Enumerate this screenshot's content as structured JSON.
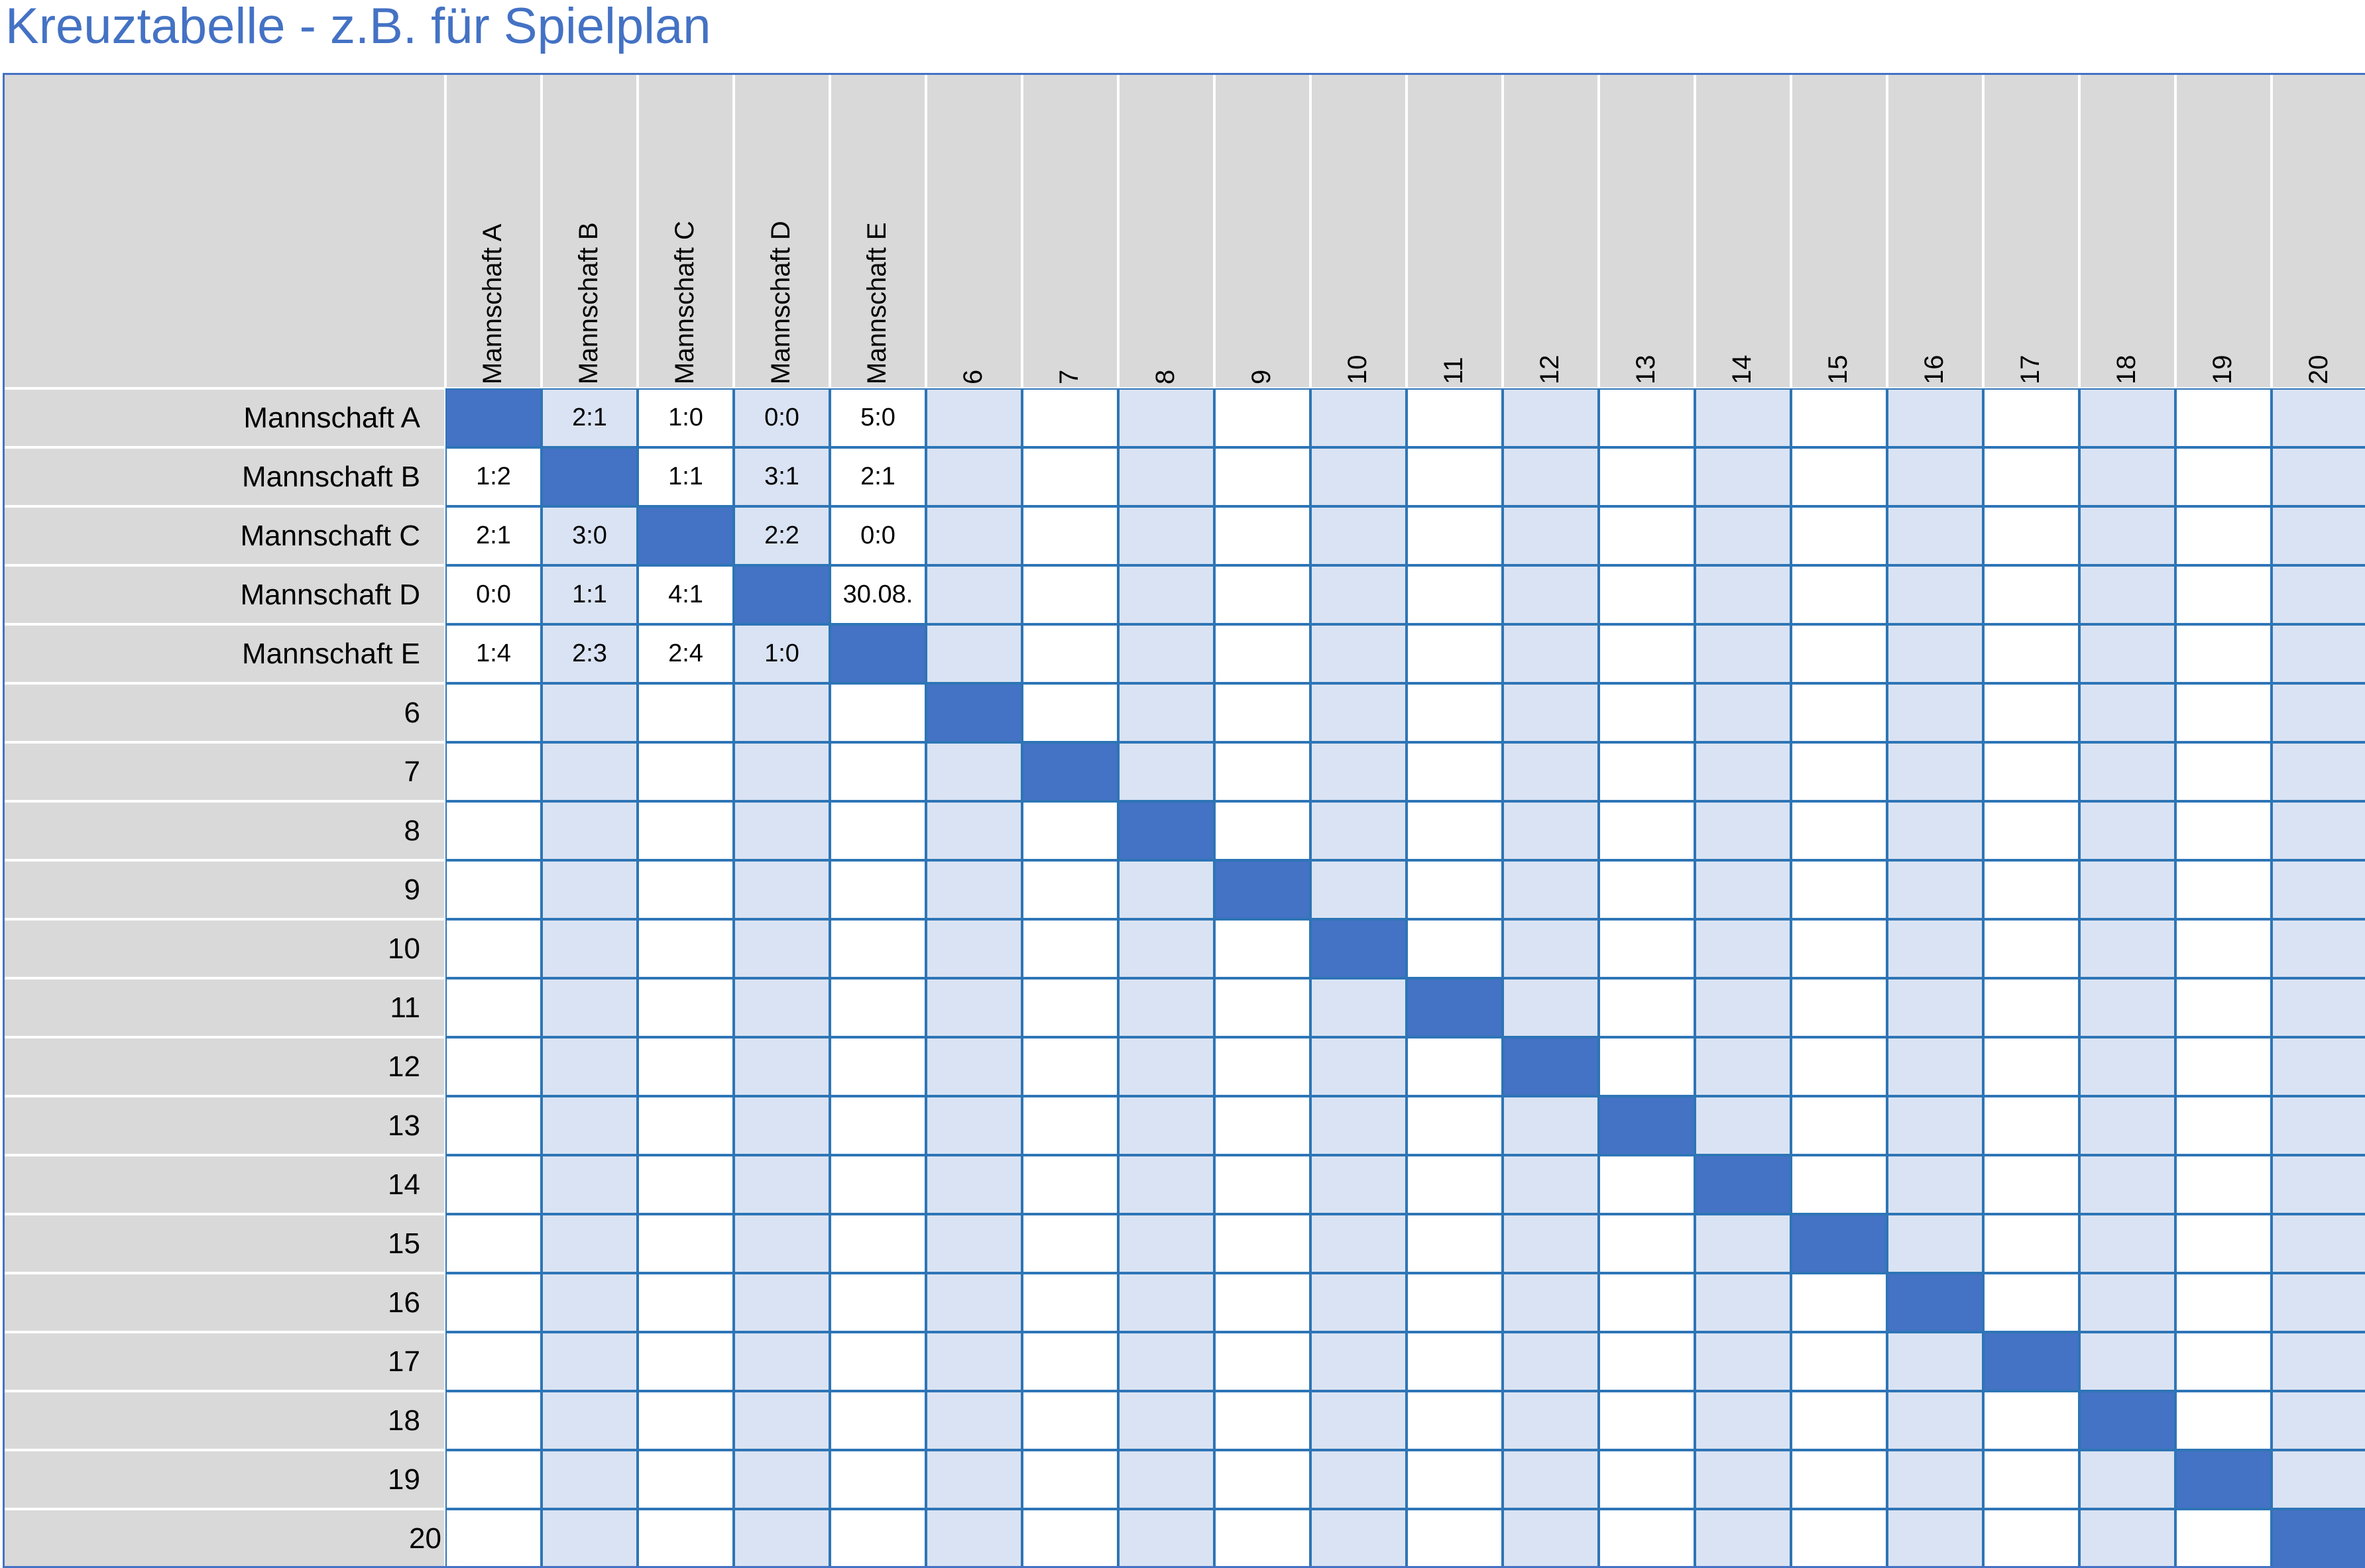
{
  "title": "Kreuztabelle - z.B. für Spielplan",
  "colors": {
    "accent": "#4472C4",
    "light": "#DAE3F3",
    "header": "#D9D9D9",
    "border": "#2E75B6"
  },
  "teams": [
    "Mannschaft A",
    "Mannschaft B",
    "Mannschaft C",
    "Mannschaft D",
    "Mannschaft E",
    "6",
    "7",
    "8",
    "9",
    "10",
    "11",
    "12",
    "13",
    "14",
    "15",
    "16",
    "17",
    "18",
    "19",
    "20"
  ],
  "results": [
    [
      "",
      "2:1",
      "1:0",
      "0:0",
      "5:0"
    ],
    [
      "1:2",
      "",
      "1:1",
      "3:1",
      "2:1"
    ],
    [
      "2:1",
      "3:0",
      "",
      "2:2",
      "0:0"
    ],
    [
      "0:0",
      "1:1",
      "4:1",
      "",
      "30.08."
    ],
    [
      "1:4",
      "2:3",
      "2:4",
      "1:0",
      ""
    ]
  ]
}
